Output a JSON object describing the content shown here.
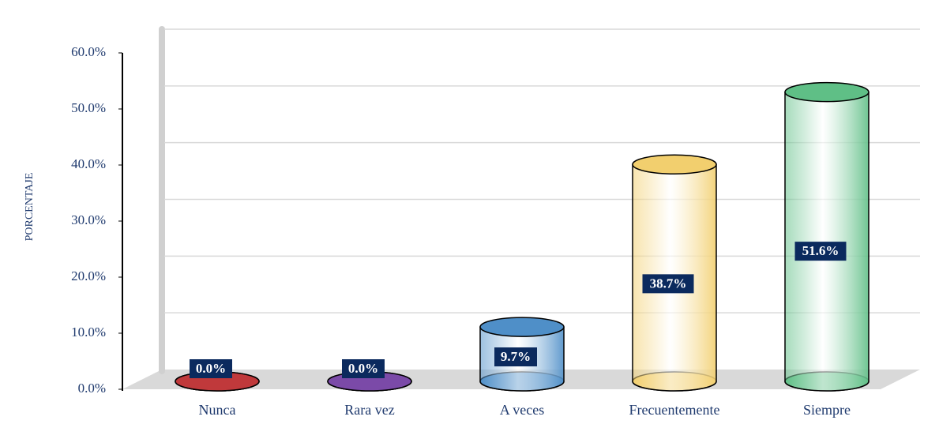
{
  "chart_data": {
    "type": "cylinder",
    "ylabel": "PORCENTAJE",
    "categories": [
      "Nunca",
      "Rara vez",
      "A veces",
      "Frecuentemente",
      "Siempre"
    ],
    "values": [
      0,
      0,
      9.7,
      38.7,
      51.6
    ],
    "value_labels": [
      "0.0%",
      "0.0%",
      "9.7%",
      "38.7%",
      "51.6%"
    ],
    "colors": [
      "#c0393b",
      "#7b4aa8",
      "#4f8fc8",
      "#f2cf6e",
      "#5fbf86"
    ],
    "ylim": [
      0,
      60
    ],
    "yticks": [
      {
        "value": 0,
        "label": "0.0%"
      },
      {
        "value": 10,
        "label": "10.0%"
      },
      {
        "value": 20,
        "label": "20.0%"
      },
      {
        "value": 30,
        "label": "30.0%"
      },
      {
        "value": 40,
        "label": "40.0%"
      },
      {
        "value": 50,
        "label": "50.0%"
      },
      {
        "value": 60,
        "label": "60.0%"
      }
    ],
    "grid": true
  }
}
